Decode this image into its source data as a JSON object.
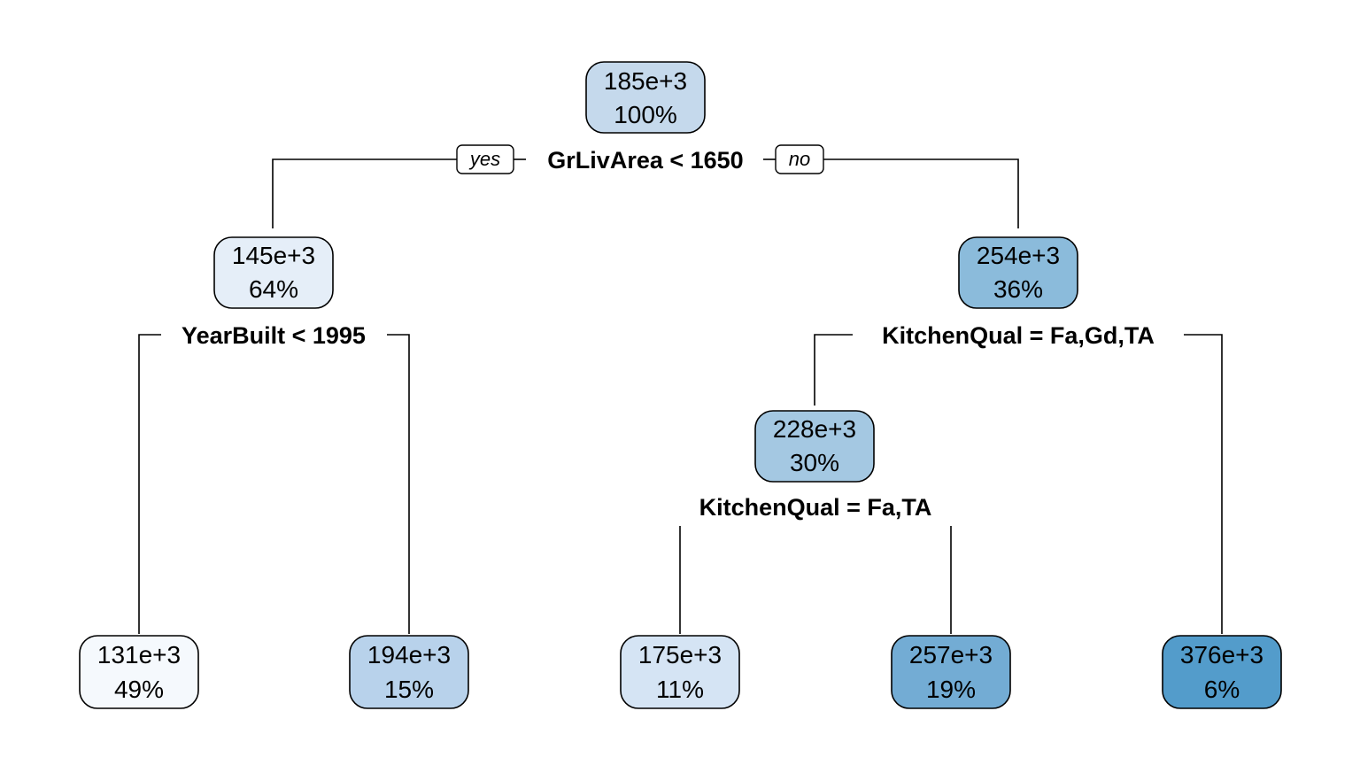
{
  "tree": {
    "branch_labels": {
      "left": "yes",
      "right": "no"
    },
    "nodes": [
      {
        "id": "root",
        "value": "185e+3",
        "percent": "100%",
        "color": "#c5d9ec"
      },
      {
        "id": "n2",
        "value": "145e+3",
        "percent": "64%",
        "color": "#e5eef8"
      },
      {
        "id": "n3",
        "value": "254e+3",
        "percent": "36%",
        "color": "#8bbbdb"
      },
      {
        "id": "n6",
        "value": "228e+3",
        "percent": "30%",
        "color": "#a4c8e2"
      },
      {
        "id": "leaf1",
        "value": "131e+3",
        "percent": "49%",
        "color": "#f5f9fd"
      },
      {
        "id": "leaf2",
        "value": "194e+3",
        "percent": "15%",
        "color": "#b8d2eb"
      },
      {
        "id": "leaf3",
        "value": "175e+3",
        "percent": "11%",
        "color": "#d5e4f4"
      },
      {
        "id": "leaf4",
        "value": "257e+3",
        "percent": "19%",
        "color": "#73acd4"
      },
      {
        "id": "leaf5",
        "value": "376e+3",
        "percent": "6%",
        "color": "#539ccb"
      }
    ],
    "splits": [
      {
        "id": "s_root",
        "label": "GrLivArea < 1650"
      },
      {
        "id": "s_n2",
        "label": "YearBuilt < 1995"
      },
      {
        "id": "s_n3",
        "label": "KitchenQual = Fa,Gd,TA"
      },
      {
        "id": "s_n6",
        "label": "KitchenQual = Fa,TA"
      }
    ]
  }
}
